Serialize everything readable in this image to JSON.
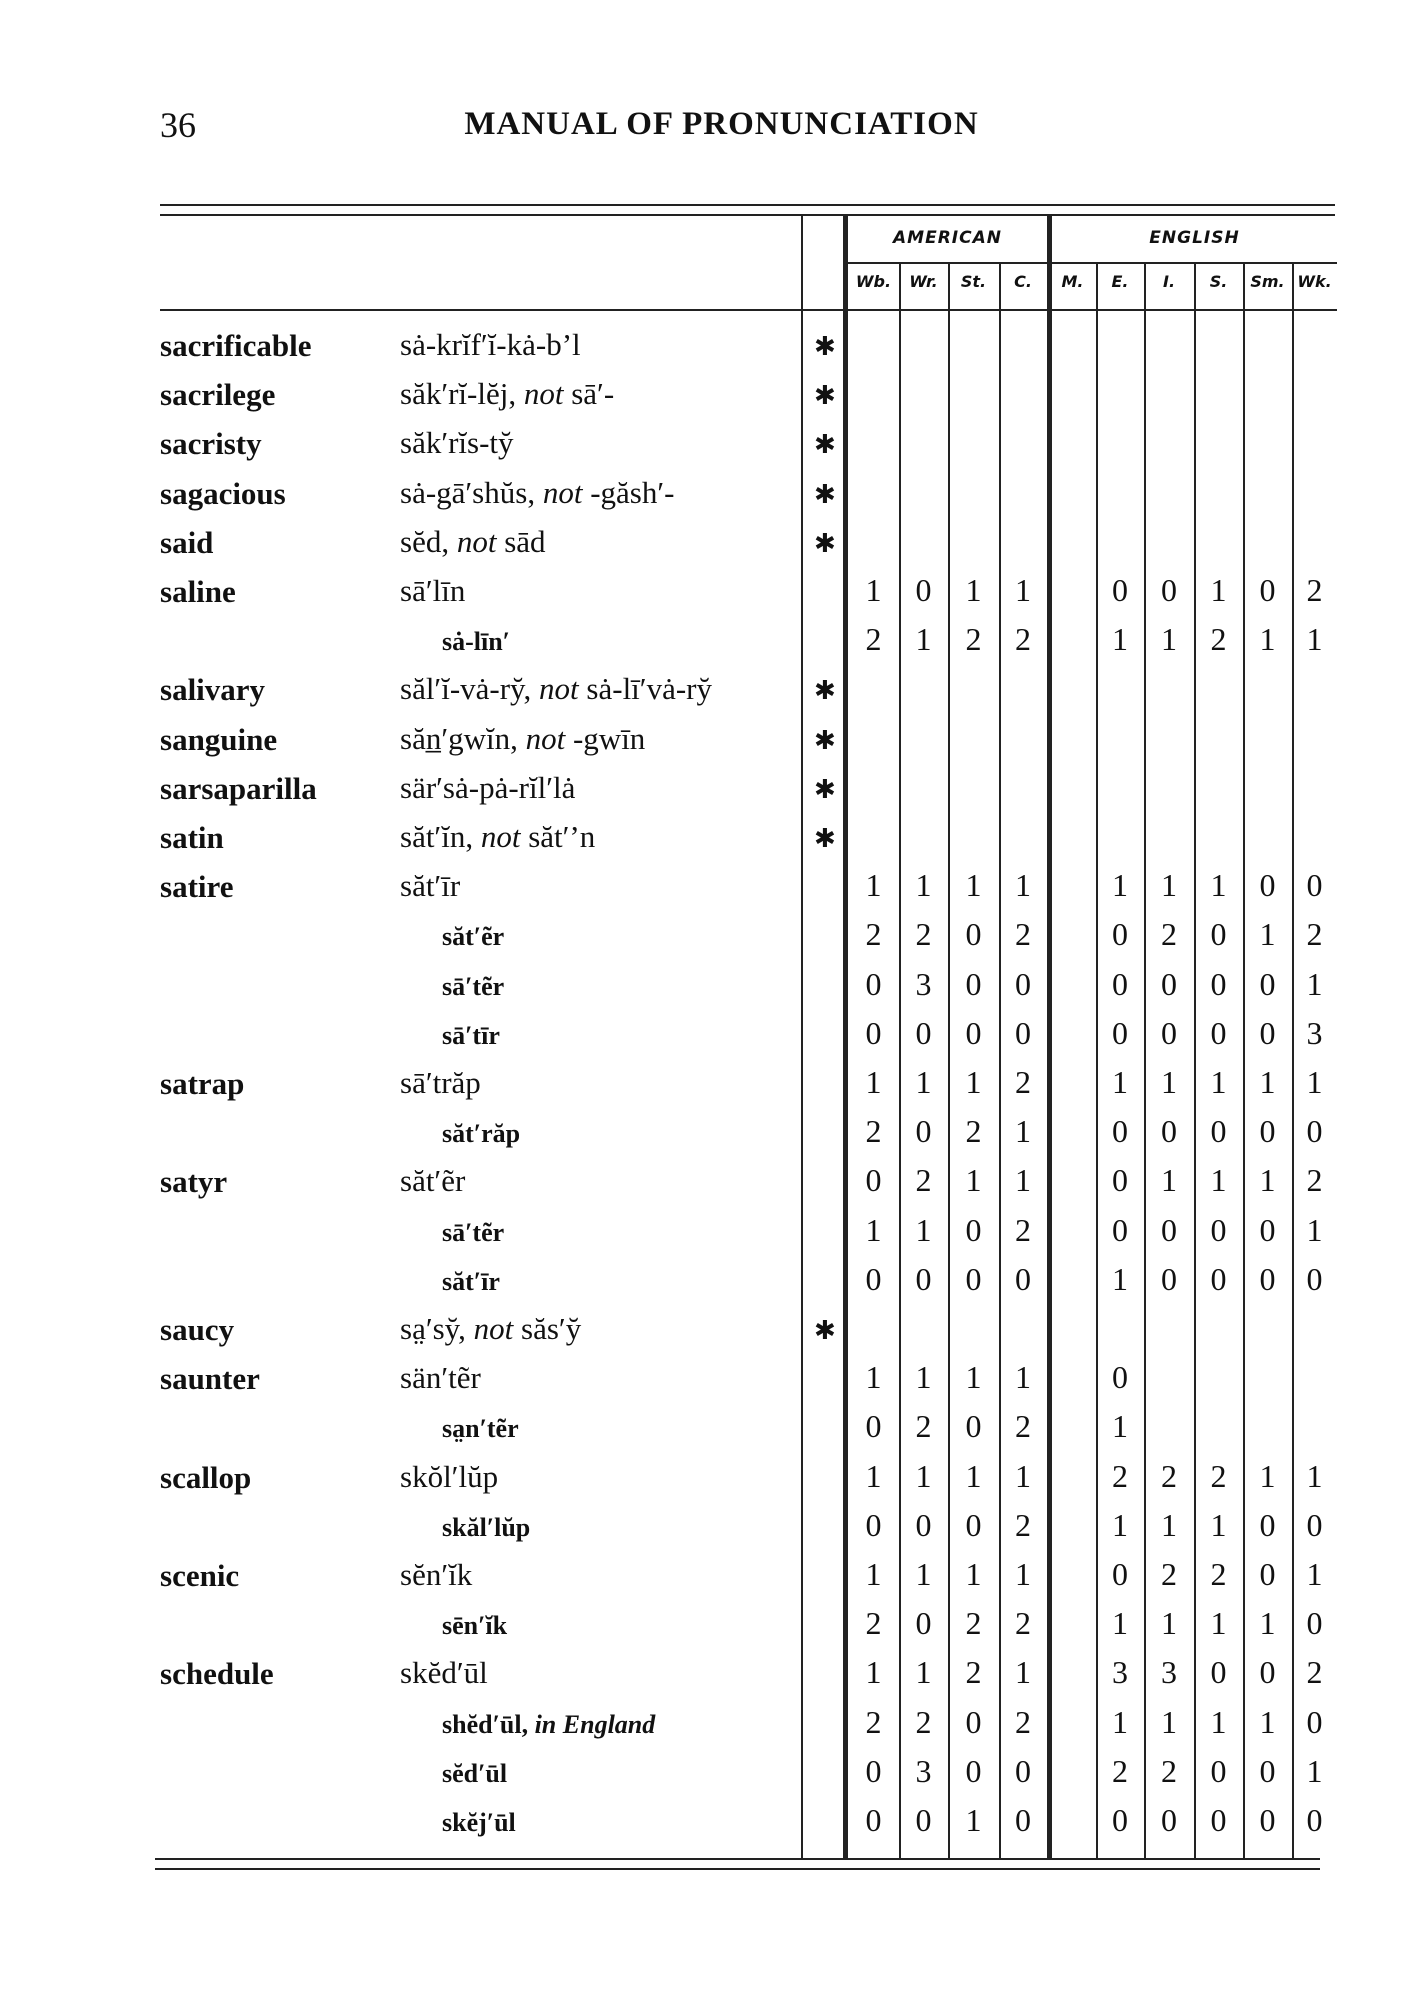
{
  "page_number": "36",
  "running_head": "MANUAL OF PRONUNCIATION",
  "table": {
    "groups": {
      "american": "AMERICAN",
      "english": "ENGLISH"
    },
    "american_columns": [
      "Wb.",
      "Wr.",
      "St.",
      "C."
    ],
    "english_columns": [
      "M.",
      "E.",
      "I.",
      "S.",
      "Sm.",
      "Wk."
    ],
    "star_symbol": "✱",
    "rows": [
      {
        "word": "sacrificable",
        "pron": [
          [
            "sȧ-krĭf′ĭ-kȧ-b’l",
            0
          ]
        ],
        "star": true
      },
      {
        "word": "sacrilege",
        "pron": [
          [
            "săk′rĭ-lĕj, ",
            0
          ],
          [
            "not",
            1
          ],
          [
            " sā′-",
            0
          ]
        ],
        "star": true
      },
      {
        "word": "sacristy",
        "pron": [
          [
            "săk′rĭs-ty̆",
            0
          ]
        ],
        "star": true
      },
      {
        "word": "sagacious",
        "pron": [
          [
            "sȧ-gā′shŭs, ",
            0
          ],
          [
            "not",
            1
          ],
          [
            " -găsh′-",
            0
          ]
        ],
        "star": true
      },
      {
        "word": "said",
        "pron": [
          [
            "sĕd, ",
            0
          ],
          [
            "not",
            1
          ],
          [
            " sād",
            0
          ]
        ],
        "star": true
      },
      {
        "word": "saline",
        "pron": [
          [
            "sā′līn",
            0
          ]
        ],
        "american": [
          1,
          0,
          1,
          1
        ],
        "english": [
          null,
          0,
          0,
          1,
          0,
          2
        ]
      },
      {
        "word": "",
        "sub": true,
        "pron": [
          [
            "sȧ-līn′",
            0
          ]
        ],
        "american": [
          2,
          1,
          2,
          2
        ],
        "english": [
          null,
          1,
          1,
          2,
          1,
          1
        ]
      },
      {
        "word": "salivary",
        "pron": [
          [
            "săl′ĭ-vȧ-ry̆, ",
            0
          ],
          [
            "not",
            1
          ],
          [
            " sȧ-lī′vȧ-ry̆",
            0
          ]
        ],
        "star": true
      },
      {
        "word": "sanguine",
        "pron": [
          [
            "săn̲′gwĭn, ",
            0
          ],
          [
            "not",
            1
          ],
          [
            " -gwīn",
            0
          ]
        ],
        "star": true
      },
      {
        "word": "sarsaparilla",
        "pron": [
          [
            "sär′sȧ-pȧ-rĭl′lȧ",
            0
          ]
        ],
        "star": true
      },
      {
        "word": "satin",
        "pron": [
          [
            "săt′ĭn, ",
            0
          ],
          [
            "not",
            1
          ],
          [
            " săt′’n",
            0
          ]
        ],
        "star": true
      },
      {
        "word": "satire",
        "pron": [
          [
            "săt′īr",
            0
          ]
        ],
        "american": [
          1,
          1,
          1,
          1
        ],
        "english": [
          null,
          1,
          1,
          1,
          0,
          0
        ]
      },
      {
        "word": "",
        "sub": true,
        "pron": [
          [
            "săt′ẽr",
            0
          ]
        ],
        "american": [
          2,
          2,
          0,
          2
        ],
        "english": [
          null,
          0,
          2,
          0,
          1,
          2
        ]
      },
      {
        "word": "",
        "sub": true,
        "pron": [
          [
            "sā′tẽr",
            0
          ]
        ],
        "american": [
          0,
          3,
          0,
          0
        ],
        "english": [
          null,
          0,
          0,
          0,
          0,
          1
        ]
      },
      {
        "word": "",
        "sub": true,
        "pron": [
          [
            "sā′tīr",
            0
          ]
        ],
        "american": [
          0,
          0,
          0,
          0
        ],
        "english": [
          null,
          0,
          0,
          0,
          0,
          3
        ]
      },
      {
        "word": "satrap",
        "pron": [
          [
            "sā′trăp",
            0
          ]
        ],
        "american": [
          1,
          1,
          1,
          2
        ],
        "english": [
          null,
          1,
          1,
          1,
          1,
          1
        ]
      },
      {
        "word": "",
        "sub": true,
        "pron": [
          [
            "săt′răp",
            0
          ]
        ],
        "american": [
          2,
          0,
          2,
          1
        ],
        "english": [
          null,
          0,
          0,
          0,
          0,
          0
        ]
      },
      {
        "word": "satyr",
        "pron": [
          [
            "săt′ẽr",
            0
          ]
        ],
        "american": [
          0,
          2,
          1,
          1
        ],
        "english": [
          null,
          0,
          1,
          1,
          1,
          2
        ]
      },
      {
        "word": "",
        "sub": true,
        "pron": [
          [
            "sā′tẽr",
            0
          ]
        ],
        "american": [
          1,
          1,
          0,
          2
        ],
        "english": [
          null,
          0,
          0,
          0,
          0,
          1
        ]
      },
      {
        "word": "",
        "sub": true,
        "pron": [
          [
            "săt′īr",
            0
          ]
        ],
        "american": [
          0,
          0,
          0,
          0
        ],
        "english": [
          null,
          1,
          0,
          0,
          0,
          0
        ]
      },
      {
        "word": "saucy",
        "pron": [
          [
            "sa̤′sy̆, ",
            0
          ],
          [
            "not",
            1
          ],
          [
            " săs′y̆",
            0
          ]
        ],
        "star": true
      },
      {
        "word": "saunter",
        "pron": [
          [
            "sän′tẽr",
            0
          ]
        ],
        "american": [
          1,
          1,
          1,
          1
        ],
        "english": [
          null,
          0,
          null,
          null,
          null,
          null
        ]
      },
      {
        "word": "",
        "sub": true,
        "pron": [
          [
            "sa̤n′tẽr",
            0
          ]
        ],
        "american": [
          0,
          2,
          0,
          2
        ],
        "english": [
          null,
          1,
          null,
          null,
          null,
          null
        ]
      },
      {
        "word": "scallop",
        "pron": [
          [
            "skŏl′lŭp",
            0
          ]
        ],
        "american": [
          1,
          1,
          1,
          1
        ],
        "english": [
          null,
          2,
          2,
          2,
          1,
          1
        ]
      },
      {
        "word": "",
        "sub": true,
        "pron": [
          [
            "skăl′lŭp",
            0
          ]
        ],
        "american": [
          0,
          0,
          0,
          2
        ],
        "english": [
          null,
          1,
          1,
          1,
          0,
          0
        ]
      },
      {
        "word": "scenic",
        "pron": [
          [
            "sĕn′ĭk",
            0
          ]
        ],
        "american": [
          1,
          1,
          1,
          1
        ],
        "english": [
          null,
          0,
          2,
          2,
          0,
          1
        ]
      },
      {
        "word": "",
        "sub": true,
        "pron": [
          [
            "sēn′ĭk",
            0
          ]
        ],
        "american": [
          2,
          0,
          2,
          2
        ],
        "english": [
          null,
          1,
          1,
          1,
          1,
          0
        ]
      },
      {
        "word": "schedule",
        "pron": [
          [
            "skĕd′ūl",
            0
          ]
        ],
        "american": [
          1,
          1,
          2,
          1
        ],
        "english": [
          null,
          3,
          3,
          0,
          0,
          2
        ]
      },
      {
        "word": "",
        "sub": true,
        "pron": [
          [
            "shĕd′ūl, ",
            0
          ],
          [
            "in England",
            1
          ]
        ],
        "american": [
          2,
          2,
          0,
          2
        ],
        "english": [
          null,
          1,
          1,
          1,
          1,
          0
        ]
      },
      {
        "word": "",
        "sub": true,
        "pron": [
          [
            "sĕd′ūl",
            0
          ]
        ],
        "american": [
          0,
          3,
          0,
          0
        ],
        "english": [
          null,
          2,
          2,
          0,
          0,
          1
        ]
      },
      {
        "word": "",
        "sub": true,
        "pron": [
          [
            "skĕj′ūl",
            0
          ]
        ],
        "american": [
          0,
          0,
          1,
          0
        ],
        "english": [
          null,
          0,
          0,
          0,
          0,
          0
        ]
      }
    ]
  }
}
